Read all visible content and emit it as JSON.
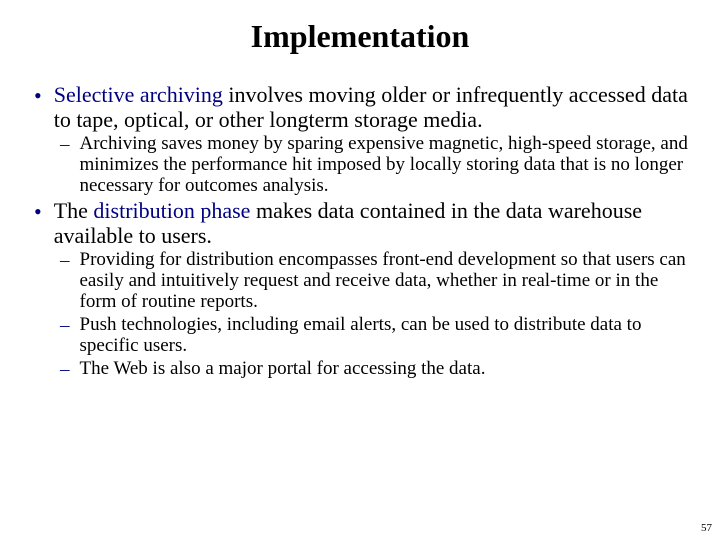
{
  "title": "Implementation",
  "bullets": [
    {
      "level": 1,
      "segments": [
        {
          "text": "Selective archiving",
          "highlight": true
        },
        {
          "text": " involves moving older or infrequently accessed data to tape, optical, or other longterm storage media.",
          "highlight": false
        }
      ]
    },
    {
      "level": 2,
      "segments": [
        {
          "text": "Archiving saves money by sparing expensive magnetic, high-speed storage, and minimizes the performance hit imposed by locally storing data that is no longer necessary for outcomes analysis.",
          "highlight": false
        }
      ]
    },
    {
      "level": 1,
      "segments": [
        {
          "text": "The ",
          "highlight": false
        },
        {
          "text": "distribution phase",
          "highlight": true
        },
        {
          "text": " makes data contained in the data warehouse available to users.",
          "highlight": false
        }
      ]
    },
    {
      "level": 2,
      "segments": [
        {
          "text": "Providing for distribution encompasses front-end development so that users can easily and intuitively request and receive data, whether in real-time or in the form of routine reports.",
          "highlight": false
        }
      ]
    },
    {
      "level": 2,
      "segments": [
        {
          "text": "Push technologies, including email alerts, can be used to distribute data to specific users.",
          "highlight": false
        }
      ]
    },
    {
      "level": 2,
      "segments": [
        {
          "text": "The Web is also a major portal for accessing the data.",
          "highlight": false
        }
      ]
    }
  ],
  "pageNumber": "57",
  "colors": {
    "highlight": "#000080",
    "bulletMarker": "#000080",
    "text": "#000000",
    "background": "#ffffff"
  },
  "fonts": {
    "title_size": 32,
    "l1_size": 22,
    "l2_size": 19,
    "family": "Times New Roman"
  },
  "markers": {
    "l1": "•",
    "l2": "–"
  }
}
